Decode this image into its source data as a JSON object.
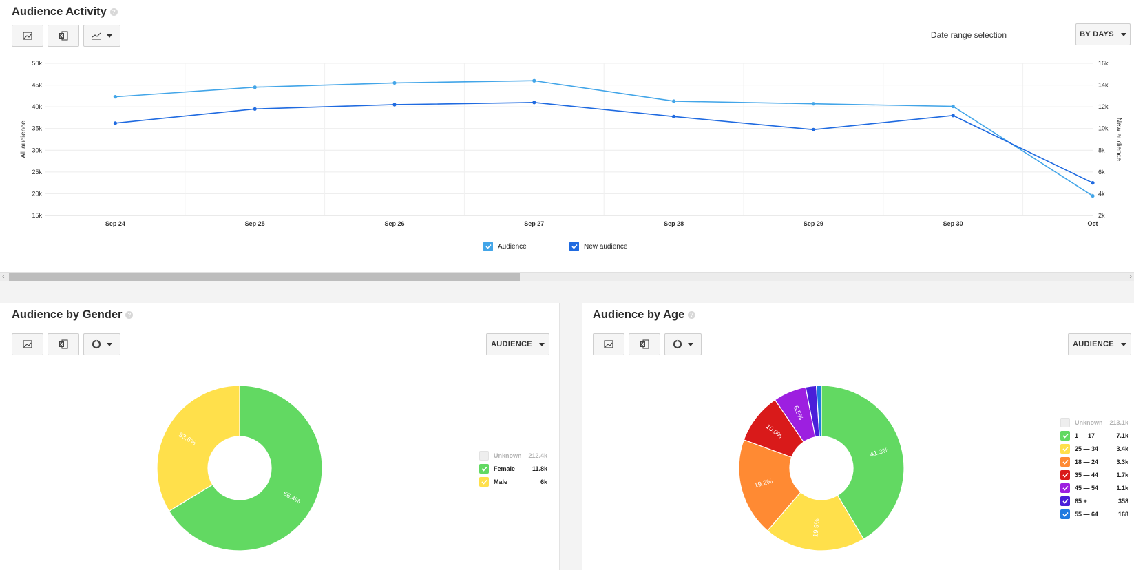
{
  "activity": {
    "title": "Audience Activity",
    "date_range_label": "Date range selection",
    "date_range_value": "BY DAYS",
    "chart_data": {
      "type": "line",
      "x": [
        "Sep 24",
        "Sep 25",
        "Sep 26",
        "Sep 27",
        "Sep 28",
        "Sep 29",
        "Sep 30",
        "Oct"
      ],
      "ylabel": "All audience",
      "y2label": "New audience",
      "ylim": [
        15000,
        50000
      ],
      "y2lim": [
        2000,
        16000
      ],
      "yticks": [
        "15k",
        "20k",
        "25k",
        "30k",
        "35k",
        "40k",
        "45k",
        "50k"
      ],
      "y2ticks": [
        "2k",
        "4k",
        "6k",
        "8k",
        "10k",
        "12k",
        "14k",
        "16k"
      ],
      "grid": true,
      "series": [
        {
          "name": "Audience",
          "axis": "left",
          "color": "#42a5e8",
          "values": [
            42300,
            44500,
            45500,
            46000,
            41300,
            40700,
            40100,
            19500
          ]
        },
        {
          "name": "New audience",
          "axis": "right",
          "color": "#1f6ae0",
          "values": [
            10500,
            11800,
            12200,
            12400,
            11100,
            9900,
            11200,
            5000
          ]
        }
      ]
    },
    "legend": [
      {
        "label": "Audience",
        "color": "#42a5e8"
      },
      {
        "label": "New audience",
        "color": "#1f6ae0"
      }
    ]
  },
  "gender": {
    "title": "Audience by Gender",
    "dropdown": "AUDIENCE",
    "chart_data": {
      "type": "pie",
      "slices": [
        {
          "label": "Female",
          "value": 11.8,
          "percent": "66.4%",
          "color": "#62d962"
        },
        {
          "label": "Male",
          "value": 6,
          "percent": "33.6%",
          "color": "#ffe04b"
        }
      ]
    },
    "legend": [
      {
        "label": "Unknown",
        "value": "212.4k",
        "dim": true,
        "color": "#eeeeee"
      },
      {
        "label": "Female",
        "value": "11.8k",
        "dim": false,
        "color": "#62d962"
      },
      {
        "label": "Male",
        "value": "6k",
        "dim": false,
        "color": "#ffe04b"
      }
    ]
  },
  "age": {
    "title": "Audience by Age",
    "dropdown": "AUDIENCE",
    "chart_data": {
      "type": "pie",
      "slices": [
        {
          "label": "1 — 17",
          "value": 7.1,
          "percent": "41.3%",
          "color": "#62d962"
        },
        {
          "label": "25 — 34",
          "value": 3.4,
          "percent": "19.9%",
          "color": "#ffe04b"
        },
        {
          "label": "18 — 24",
          "value": 3.3,
          "percent": "19.2%",
          "color": "#ff8a33"
        },
        {
          "label": "35 — 44",
          "value": 1.7,
          "percent": "10.0%",
          "color": "#d91a1a"
        },
        {
          "label": "45 — 54",
          "value": 1.1,
          "percent": "6.5%",
          "color": "#9d1fe0"
        },
        {
          "label": "65 +",
          "value": 0.358,
          "percent": "",
          "color": "#4a1fd9"
        },
        {
          "label": "55 — 64",
          "value": 0.168,
          "percent": "",
          "color": "#1f7ae0"
        }
      ]
    },
    "legend": [
      {
        "label": "Unknown",
        "value": "213.1k",
        "dim": true,
        "color": "#eeeeee"
      },
      {
        "label": "1 — 17",
        "value": "7.1k",
        "dim": false,
        "color": "#62d962"
      },
      {
        "label": "25 — 34",
        "value": "3.4k",
        "dim": false,
        "color": "#ffe04b"
      },
      {
        "label": "18 — 24",
        "value": "3.3k",
        "dim": false,
        "color": "#ff8a33"
      },
      {
        "label": "35 — 44",
        "value": "1.7k",
        "dim": false,
        "color": "#d91a1a"
      },
      {
        "label": "45 — 54",
        "value": "1.1k",
        "dim": false,
        "color": "#9d1fe0"
      },
      {
        "label": "65 +",
        "value": "358",
        "dim": false,
        "color": "#4a1fd9"
      },
      {
        "label": "55 — 64",
        "value": "168",
        "dim": false,
        "color": "#1f7ae0"
      }
    ]
  }
}
